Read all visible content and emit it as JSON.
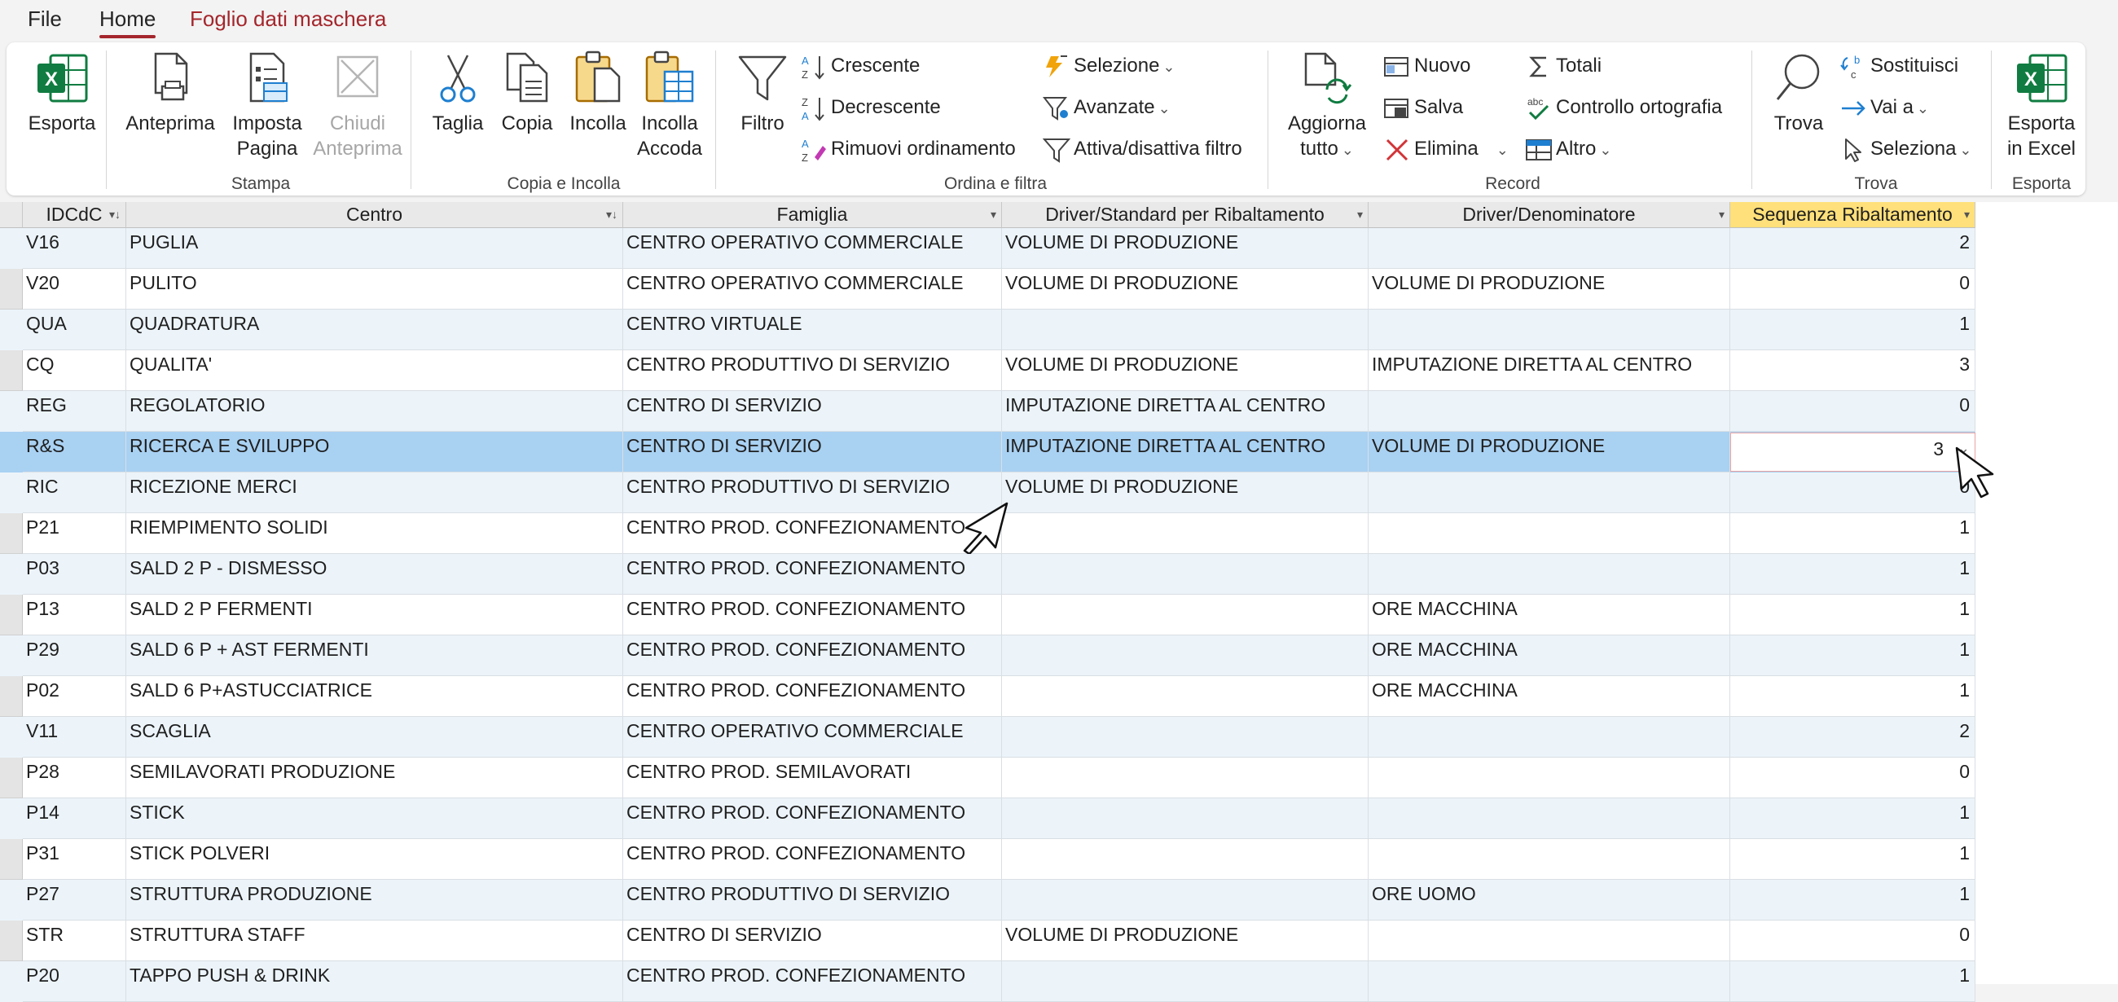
{
  "menu": {
    "tabs": [
      {
        "label": "File"
      },
      {
        "label": "Home"
      },
      {
        "label": "Foglio dati maschera"
      }
    ]
  },
  "ribbon": {
    "groups": {
      "stampa": "Stampa",
      "copia_incolla": "Copia e Incolla",
      "ordina_filtra": "Ordina e filtra",
      "record": "Record",
      "trova": "Trova",
      "esporta": "Esporta"
    },
    "buttons": {
      "esporta": "Esporta",
      "anteprima": "Anteprima",
      "imposta_pagina_1": "Imposta",
      "imposta_pagina_2": "Pagina",
      "chiudi_anteprima_1": "Chiudi",
      "chiudi_anteprima_2": "Anteprima",
      "taglia": "Taglia",
      "copia": "Copia",
      "incolla": "Incolla",
      "incolla_accoda_1": "Incolla",
      "incolla_accoda_2": "Accoda",
      "filtro": "Filtro",
      "crescente": "Crescente",
      "decrescente": "Decrescente",
      "rimuovi_ordinamento": "Rimuovi ordinamento",
      "selezione": "Selezione",
      "avanzate": "Avanzate",
      "attiva_disattiva": "Attiva/disattiva filtro",
      "aggiorna_1": "Aggiorna",
      "aggiorna_2": "tutto",
      "nuovo": "Nuovo",
      "salva": "Salva",
      "elimina": "Elimina",
      "totali": "Totali",
      "controllo_ortografia": "Controllo ortografia",
      "altro": "Altro",
      "trova": "Trova",
      "sostituisci": "Sostituisci",
      "vai_a": "Vai a",
      "seleziona": "Seleziona",
      "esporta_excel_1": "Esporta",
      "esporta_excel_2": "in Excel"
    }
  },
  "table": {
    "columns": [
      "IDCdC",
      "Centro",
      "Famiglia",
      "Driver/Standard per Ribaltamento",
      "Driver/Denominatore",
      "Sequenza Ribaltamento"
    ],
    "rows": [
      {
        "id": "V16",
        "centro": "PUGLIA",
        "famiglia": "CENTRO OPERATIVO COMMERCIALE",
        "driver": "VOLUME DI PRODUZIONE",
        "denominatore": "",
        "seq": "2"
      },
      {
        "id": "V20",
        "centro": "PULITO",
        "famiglia": "CENTRO OPERATIVO COMMERCIALE",
        "driver": "VOLUME DI PRODUZIONE",
        "denominatore": "VOLUME DI PRODUZIONE",
        "seq": "0"
      },
      {
        "id": "QUA",
        "centro": "QUADRATURA",
        "famiglia": "CENTRO VIRTUALE",
        "driver": "",
        "denominatore": "",
        "seq": "1"
      },
      {
        "id": "CQ",
        "centro": "QUALITA'",
        "famiglia": "CENTRO PRODUTTIVO DI SERVIZIO",
        "driver": "VOLUME DI PRODUZIONE",
        "denominatore": "IMPUTAZIONE DIRETTA AL CENTRO",
        "seq": "3"
      },
      {
        "id": "REG",
        "centro": "REGOLATORIO",
        "famiglia": "CENTRO DI SERVIZIO",
        "driver": "IMPUTAZIONE DIRETTA AL CENTRO",
        "denominatore": "",
        "seq": "0"
      },
      {
        "id": "R&S",
        "centro": "RICERCA E SVILUPPO",
        "famiglia": "CENTRO DI SERVIZIO",
        "driver": "IMPUTAZIONE DIRETTA AL CENTRO",
        "denominatore": "VOLUME DI PRODUZIONE",
        "seq": "3"
      },
      {
        "id": "RIC",
        "centro": "RICEZIONE MERCI",
        "famiglia": "CENTRO PRODUTTIVO DI SERVIZIO",
        "driver": "VOLUME DI PRODUZIONE",
        "denominatore": "",
        "seq": "0"
      },
      {
        "id": "P21",
        "centro": "RIEMPIMENTO SOLIDI",
        "famiglia": "CENTRO PROD. CONFEZIONAMENTO",
        "driver": "",
        "denominatore": "",
        "seq": "1"
      },
      {
        "id": "P03",
        "centro": "SALD 2 P - DISMESSO",
        "famiglia": "CENTRO PROD. CONFEZIONAMENTO",
        "driver": "",
        "denominatore": "",
        "seq": "1"
      },
      {
        "id": "P13",
        "centro": "SALD 2 P FERMENTI",
        "famiglia": "CENTRO PROD. CONFEZIONAMENTO",
        "driver": "",
        "denominatore": "ORE MACCHINA",
        "seq": "1"
      },
      {
        "id": "P29",
        "centro": "SALD 6 P + AST FERMENTI",
        "famiglia": "CENTRO PROD. CONFEZIONAMENTO",
        "driver": "",
        "denominatore": "ORE MACCHINA",
        "seq": "1"
      },
      {
        "id": "P02",
        "centro": "SALD 6 P+ASTUCCIATRICE",
        "famiglia": "CENTRO PROD. CONFEZIONAMENTO",
        "driver": "",
        "denominatore": "ORE MACCHINA",
        "seq": "1"
      },
      {
        "id": "V11",
        "centro": "SCAGLIA",
        "famiglia": "CENTRO OPERATIVO COMMERCIALE",
        "driver": "",
        "denominatore": "",
        "seq": "2"
      },
      {
        "id": "P28",
        "centro": "SEMILAVORATI PRODUZIONE",
        "famiglia": "CENTRO PROD. SEMILAVORATI",
        "driver": "",
        "denominatore": "",
        "seq": "0"
      },
      {
        "id": "P14",
        "centro": "STICK",
        "famiglia": "CENTRO PROD. CONFEZIONAMENTO",
        "driver": "",
        "denominatore": "",
        "seq": "1"
      },
      {
        "id": "P31",
        "centro": "STICK POLVERI",
        "famiglia": "CENTRO PROD. CONFEZIONAMENTO",
        "driver": "",
        "denominatore": "",
        "seq": "1"
      },
      {
        "id": "P27",
        "centro": "STRUTTURA PRODUZIONE",
        "famiglia": "CENTRO PRODUTTIVO DI SERVIZIO",
        "driver": "",
        "denominatore": "ORE UOMO",
        "seq": "1"
      },
      {
        "id": "STR",
        "centro": "STRUTTURA STAFF",
        "famiglia": "CENTRO DI SERVIZIO",
        "driver": "VOLUME DI PRODUZIONE",
        "denominatore": "",
        "seq": "0"
      },
      {
        "id": "P20",
        "centro": "TAPPO PUSH & DRINK",
        "famiglia": "CENTRO PROD. CONFEZIONAMENTO",
        "driver": "",
        "denominatore": "",
        "seq": "1"
      }
    ],
    "current_row": 5,
    "colors": {
      "current_row": "#a9d1f2",
      "alt_row": "#ecf4fa",
      "selected_header": "#ffe07a",
      "accent": "#a4262c"
    },
    "icons": [
      "excel-icon",
      "document-icon",
      "page-setup-icon",
      "close-preview-icon",
      "scissors-icon",
      "copy-icon",
      "paste-icon",
      "paste-append-icon",
      "funnel-icon",
      "sort-ascending-icon",
      "sort-descending-icon",
      "remove-sort-icon",
      "selection-filter-icon",
      "advanced-filter-icon",
      "toggle-filter-icon",
      "refresh-icon",
      "new-record-icon",
      "save-icon",
      "delete-icon",
      "sigma-icon",
      "spell-check-icon",
      "table-icon",
      "search-icon",
      "replace-icon",
      "arrow-right-icon",
      "cursor-select-icon",
      "pencil-icon",
      "mouse-pointer-icon"
    ]
  }
}
